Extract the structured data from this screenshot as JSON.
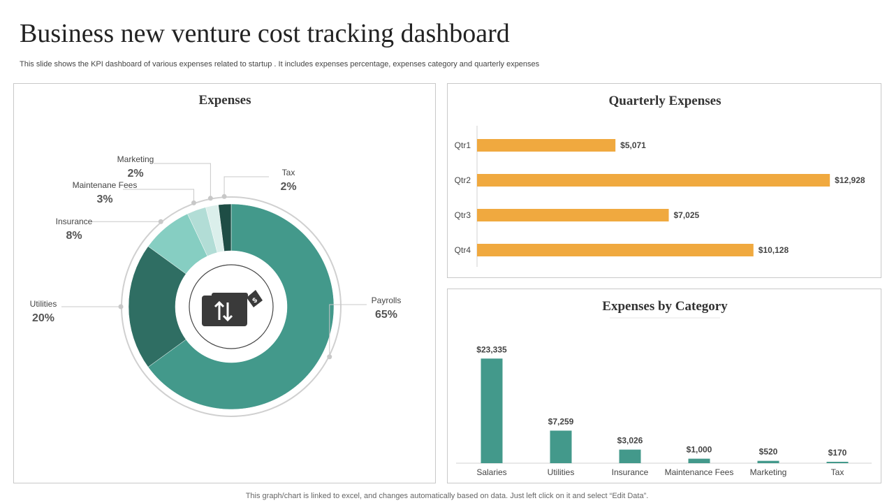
{
  "page": {
    "title": "Business new venture cost tracking dashboard",
    "subtitle": "This slide shows the KPI dashboard of various expenses related to startup . It includes expenses percentage, expenses category and quarterly expenses",
    "footnote": "This graph/chart is linked to excel,  and changes automatically based on data. Just left click on it and select “Edit Data”."
  },
  "colors": {
    "payrolls": "#43998b",
    "utilities": "#2f6e63",
    "insurance": "#86cec2",
    "maintenance": "#b2ddd6",
    "marketing": "#dbefeb",
    "tax": "#1e4d45",
    "quarter_bar": "#f0a93f",
    "category_bar": "#43998b",
    "icon": "#3a3a3a"
  },
  "chart_data": [
    {
      "type": "pie",
      "title": "Expenses",
      "center_icon": "wallet-money-transfer-icon",
      "slices": [
        {
          "label": "Payrolls",
          "value": 65,
          "display": "65%",
          "color_key": "payrolls"
        },
        {
          "label": "Utilities",
          "value": 20,
          "display": "20%",
          "color_key": "utilities"
        },
        {
          "label": "Insurance",
          "value": 8,
          "display": "8%",
          "color_key": "insurance"
        },
        {
          "label": "Maintenane Fees",
          "value": 3,
          "display": "3%",
          "color_key": "maintenance"
        },
        {
          "label": "Marketing",
          "value": 2,
          "display": "2%",
          "color_key": "marketing"
        },
        {
          "label": "Tax",
          "value": 2,
          "display": "2%",
          "color_key": "tax"
        }
      ]
    },
    {
      "type": "bar",
      "orientation": "horizontal",
      "title": "Quarterly Expenses",
      "categories": [
        "Qtr1",
        "Qtr2",
        "Qtr3",
        "Qtr4"
      ],
      "values": [
        5071,
        12928,
        7025,
        10128
      ],
      "labels": [
        "$5,071",
        "$12,928",
        "$7,025",
        "$10,128"
      ],
      "xlim": [
        0,
        13000
      ]
    },
    {
      "type": "bar",
      "title": "Expenses by Category",
      "categories": [
        "Salaries",
        "Utilities",
        "Insurance",
        "Maintenance Fees",
        "Marketing",
        "Tax"
      ],
      "values": [
        23335,
        7259,
        3026,
        1000,
        520,
        170
      ],
      "labels": [
        "$23,335",
        "$7,259",
        "$3,026",
        "$1,000",
        "$520",
        "$170"
      ],
      "ylim": [
        0,
        24000
      ]
    }
  ]
}
